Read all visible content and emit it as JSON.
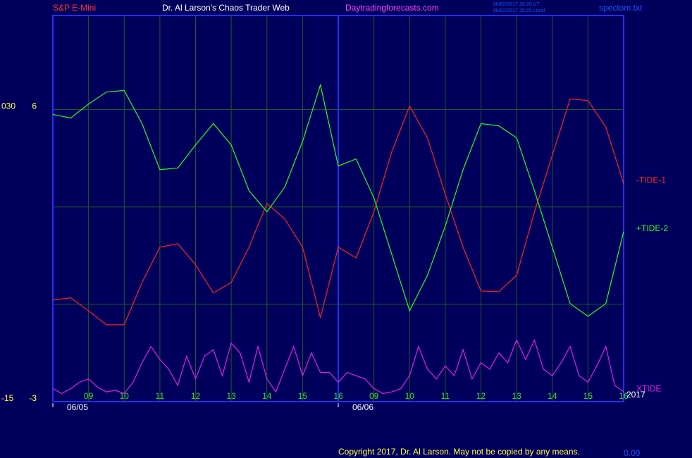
{
  "chart_data": {
    "type": "line",
    "header": {
      "instrument": "S&P E-Mini",
      "title": "Dr. Al Larson's Chaos Trader Web",
      "site": "Daytradingforecasts.com",
      "time_ut": "06/02/2017 20:20 UT",
      "time_local": "06/02/2017 15:20 Local",
      "file": "spectom.txt"
    },
    "footer": "Copyright 2017, Dr. Al Larson. May not be copied by any means.",
    "footer_value": "0.00",
    "xlim": [
      0,
      16
    ],
    "xticks": [
      {
        "value": 1,
        "label": "09"
      },
      {
        "value": 2,
        "label": "10"
      },
      {
        "value": 3,
        "label": "11"
      },
      {
        "value": 4,
        "label": "12"
      },
      {
        "value": 5,
        "label": "13"
      },
      {
        "value": 6,
        "label": "14"
      },
      {
        "value": 7,
        "label": "15"
      },
      {
        "value": 8,
        "label": "16"
      },
      {
        "value": 9,
        "label": "09"
      },
      {
        "value": 10,
        "label": "10"
      },
      {
        "value": 11,
        "label": "11"
      },
      {
        "value": 12,
        "label": "12"
      },
      {
        "value": 13,
        "label": "13"
      },
      {
        "value": 14,
        "label": "14"
      },
      {
        "value": 15,
        "label": "15"
      },
      {
        "value": 16,
        "label": "16"
      }
    ],
    "date_labels": [
      {
        "value": 0,
        "label": "06/05"
      },
      {
        "value": 8,
        "label": "06/06"
      }
    ],
    "year_label": "2017",
    "day_divider": 8,
    "ylim": [
      -3,
      8.9
    ],
    "yticks": [
      -3,
      6
    ],
    "grid_y": [
      0,
      3,
      6
    ],
    "y2lim": [
      -15,
      44.5
    ],
    "y2ticks": [
      -15,
      {
        "value": 30,
        "label": "030"
      }
    ],
    "grid": true,
    "series": [
      {
        "name": "-TIDE-1",
        "color": "#ff2020",
        "x": [
          0,
          0.5,
          1,
          1.5,
          2,
          2.5,
          3,
          3.5,
          4,
          4.5,
          5,
          5.5,
          6,
          6.5,
          7,
          7.5,
          8,
          8.5,
          9,
          9.5,
          10,
          10.5,
          11,
          11.5,
          12,
          12.5,
          13,
          13.5,
          14,
          14.5,
          15,
          15.5,
          16
        ],
        "values": [
          0.13,
          0.2,
          -0.2,
          -0.63,
          -0.63,
          0.67,
          1.76,
          1.87,
          1.22,
          0.35,
          0.67,
          1.76,
          3.11,
          2.63,
          1.76,
          -0.41,
          1.76,
          1.43,
          2.85,
          4.7,
          6.11,
          5.13,
          3.39,
          1.76,
          0.41,
          0.39,
          0.89,
          2.85,
          4.59,
          6.33,
          6.28,
          5.46,
          3.72
        ]
      },
      {
        "name": "+TIDE-2",
        "color": "#20ff20",
        "x": [
          0,
          0.5,
          1,
          1.5,
          2,
          2.5,
          3,
          3.5,
          4,
          4.5,
          5,
          5.5,
          6,
          6.5,
          7,
          7.5,
          8,
          8.5,
          9,
          9.5,
          10,
          10.5,
          11,
          11.5,
          12,
          12.5,
          13,
          13.5,
          14,
          14.5,
          15,
          15.5,
          16
        ],
        "values": [
          5.85,
          5.74,
          6.17,
          6.54,
          6.59,
          5.57,
          4.15,
          4.2,
          4.91,
          5.57,
          4.91,
          3.5,
          2.85,
          3.61,
          5.02,
          6.76,
          4.26,
          4.48,
          3.28,
          1.54,
          -0.2,
          0.89,
          2.41,
          4.15,
          5.57,
          5.5,
          5.13,
          3.5,
          1.76,
          0.02,
          -0.37,
          0.02,
          2.24
        ]
      },
      {
        "name": "XTIDE",
        "color": "#e020e0",
        "x": [
          0,
          0.25,
          0.5,
          0.75,
          1,
          1.25,
          1.5,
          1.75,
          2,
          2.25,
          2.5,
          2.75,
          3,
          3.25,
          3.5,
          3.75,
          4,
          4.25,
          4.5,
          4.75,
          5,
          5.25,
          5.5,
          5.75,
          6,
          6.25,
          6.5,
          6.75,
          7,
          7.25,
          7.5,
          7.75,
          8,
          8.25,
          8.5,
          8.75,
          9,
          9.25,
          9.5,
          9.75,
          10,
          10.25,
          10.5,
          10.75,
          11,
          11.25,
          11.5,
          11.75,
          12,
          12.25,
          12.5,
          12.75,
          13,
          13.25,
          13.5,
          13.75,
          14,
          14.25,
          14.5,
          14.75,
          15,
          15.25,
          15.5,
          15.75,
          16
        ],
        "values": [
          -2.6,
          -2.75,
          -2.6,
          -2.4,
          -2.3,
          -2.55,
          -2.7,
          -2.65,
          -2.75,
          -2.4,
          -1.8,
          -1.3,
          -1.7,
          -2.0,
          -2.5,
          -1.6,
          -2.3,
          -1.6,
          -1.4,
          -2.2,
          -1.2,
          -1.5,
          -2.4,
          -1.3,
          -2.3,
          -2.7,
          -2.0,
          -1.3,
          -2.2,
          -1.5,
          -2.1,
          -2.1,
          -2.4,
          -2.1,
          -2.2,
          -2.3,
          -2.6,
          -2.75,
          -2.7,
          -2.6,
          -2.2,
          -1.3,
          -2.0,
          -2.3,
          -1.9,
          -2.2,
          -1.4,
          -2.3,
          -1.8,
          -2.0,
          -1.5,
          -1.8,
          -1.1,
          -1.7,
          -1.1,
          -2.0,
          -2.2,
          -1.8,
          -1.3,
          -2.2,
          -2.4,
          -1.9,
          -1.3,
          -2.5,
          -2.7
        ]
      }
    ]
  }
}
